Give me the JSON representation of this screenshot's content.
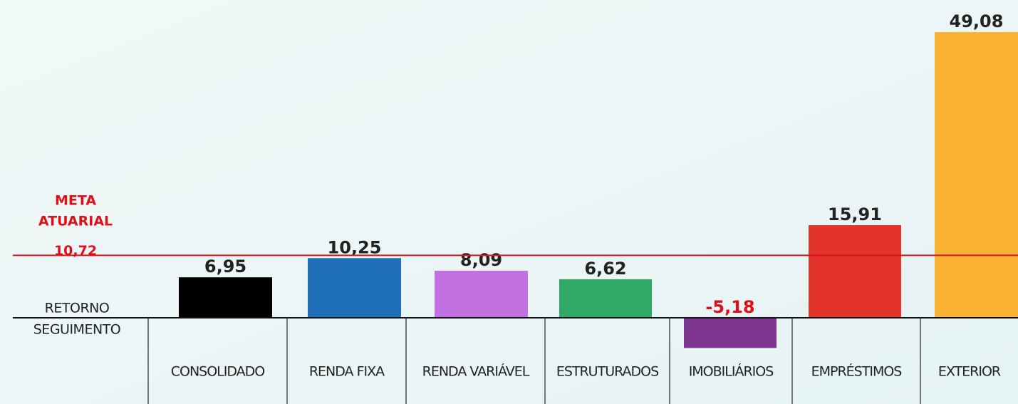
{
  "chart_data": {
    "type": "bar",
    "categories": [
      "CONSOLIDADO",
      "RENDA FIXA",
      "RENDA VARIÁVEL",
      "ESTRUTURADOS",
      "IMOBILIÁRIOS",
      "EMPRÉSTIMOS",
      "EXTERIOR"
    ],
    "values": [
      6.95,
      10.25,
      8.09,
      6.62,
      -5.18,
      15.91,
      49.08
    ],
    "value_labels": [
      "6,95",
      "10,25",
      "8,09",
      "6,62",
      "-5,18",
      "15,91",
      "49,08"
    ],
    "colors": [
      "#000000",
      "#1f6fb8",
      "#c172e0",
      "#2eaa66",
      "#7e3590",
      "#e2342a",
      "#f9b233"
    ],
    "negative_label_color": "#e0101a",
    "row_labels": [
      "RETORNO",
      "SEGUIMENTO"
    ],
    "target_label": [
      "META",
      "ATUARIAL"
    ],
    "target_value": 10.72,
    "target_value_label": "10,72",
    "target_color": "#e0101a"
  }
}
